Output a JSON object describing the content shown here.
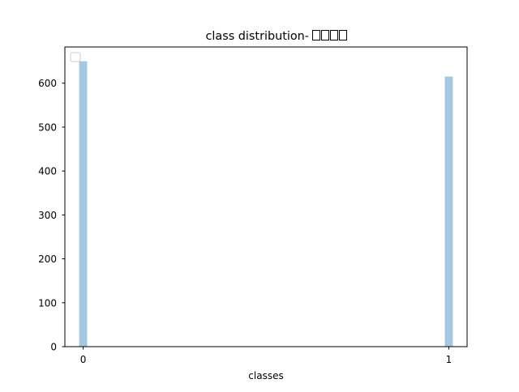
{
  "chart_data": {
    "type": "bar",
    "title": "class distribution- □□□□",
    "title_text": "class distribution-",
    "title_missing_glyphs": 4,
    "xlabel": "classes",
    "ylabel": "",
    "categories": [
      "0",
      "1"
    ],
    "x": [
      0,
      1
    ],
    "values": [
      650,
      615
    ],
    "xlim": [
      -0.05,
      1.05
    ],
    "ylim": [
      0,
      682.5
    ],
    "yticks": [
      0,
      100,
      200,
      300,
      400,
      500,
      600
    ],
    "xticks": [
      0,
      1
    ],
    "bar_width_units": 0.022,
    "bar_color": "#a5c8e1",
    "grid": false,
    "legend": {
      "placement": "top-left",
      "entries": []
    }
  }
}
